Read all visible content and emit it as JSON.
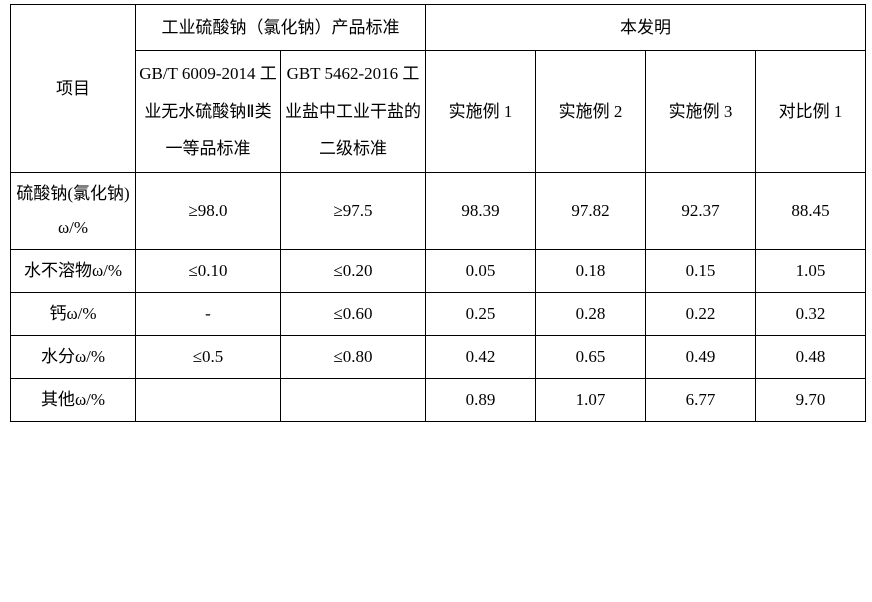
{
  "header": {
    "topA": "工业硫酸钠（氯化钠）产品标准",
    "topB": "本发明",
    "rowLabel": "项目",
    "std1": "GB/T 6009-2014 工业无水硫酸钠Ⅱ类\n一等品标准",
    "std2": "GBT 5462-2016 工业盐中工业干盐的二级标准",
    "ex1": "实施例 1",
    "ex2": "实施例 2",
    "ex3": "实施例 3",
    "cmp1": "对比例 1"
  },
  "rows": [
    {
      "label": "硫酸钠(氯化钠) ω/%",
      "s1": "≥98.0",
      "s2": "≥97.5",
      "v1": "98.39",
      "v2": "97.82",
      "v3": "92.37",
      "v4": "88.45"
    },
    {
      "label": "水不溶物ω/%",
      "s1": "≤0.10",
      "s2": "≤0.20",
      "v1": "0.05",
      "v2": "0.18",
      "v3": "0.15",
      "v4": "1.05"
    },
    {
      "label": "钙ω/%",
      "s1": "-",
      "s2": "≤0.60",
      "v1": "0.25",
      "v2": "0.28",
      "v3": "0.22",
      "v4": "0.32"
    },
    {
      "label": "水分ω/%",
      "s1": "≤0.5",
      "s2": "≤0.80",
      "v1": "0.42",
      "v2": "0.65",
      "v3": "0.49",
      "v4": "0.48"
    },
    {
      "label": "其他ω/%",
      "s1": "",
      "s2": "",
      "v1": "0.89",
      "v2": "1.07",
      "v3": "6.77",
      "v4": "9.70"
    }
  ],
  "style": {
    "font_family": "SimSun",
    "font_size_pt": 13,
    "border_color": "#000000",
    "background_color": "#ffffff",
    "text_color": "#000000",
    "line_height": 2.0
  }
}
